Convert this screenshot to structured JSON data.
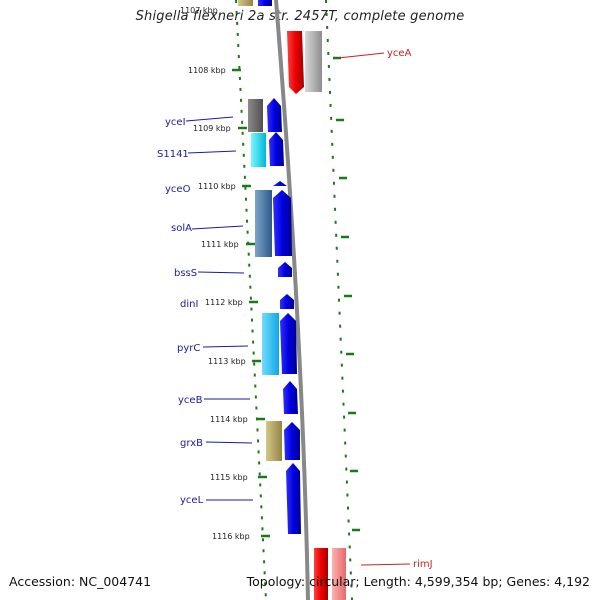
{
  "title": "Shigella flexneri 2a str. 2457T, complete genome",
  "footer": {
    "accession": "Accession: NC_004741",
    "summary": "Topology: circular; Length: 4,599,354 bp; Genes: 4,192"
  },
  "tick_labels": [
    "1107 kbp",
    "1108 kbp",
    "1109 kbp",
    "1110 kbp",
    "1111 kbp",
    "1112 kbp",
    "1113 kbp",
    "1114 kbp",
    "1115 kbp",
    "1116 kbp"
  ],
  "left_genes": [
    "yceI",
    "S1141",
    "yceO",
    "solA",
    "bssS",
    "dinI",
    "pyrC",
    "yceB",
    "grxB",
    "yceL"
  ],
  "right_genes": [
    "yceA",
    "rimJ"
  ],
  "colors": {
    "forward_gene": "#0000ee",
    "reverse_gene": "#ee0000",
    "tick": "#1a7a1a",
    "backbone": "#888888",
    "label_forward": "#1a1aa6",
    "label_reverse": "#cc1f1f"
  }
}
